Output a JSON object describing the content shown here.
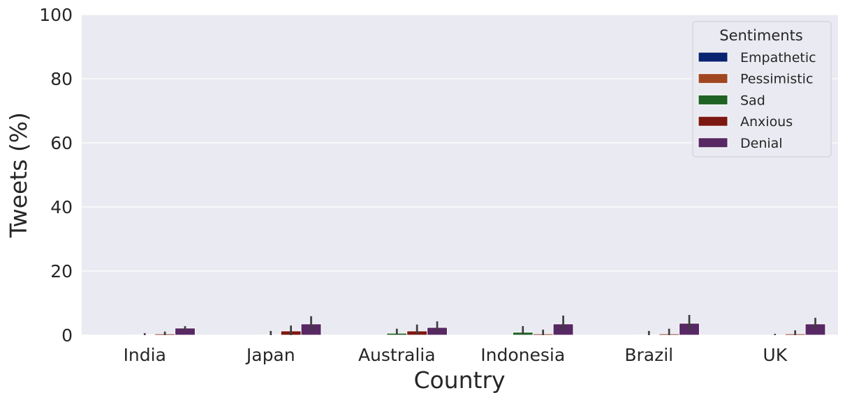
{
  "chart_data": {
    "type": "bar",
    "title": "",
    "xlabel": "Country",
    "ylabel": "Tweets (%)",
    "ylim": [
      0,
      100
    ],
    "yticks": [
      0,
      20,
      40,
      60,
      80,
      100
    ],
    "grid": true,
    "legend": {
      "title": "Sentiments",
      "placement": "top-right"
    },
    "categories": [
      "India",
      "Japan",
      "Australia",
      "Indonesia",
      "Brazil",
      "UK"
    ],
    "series": [
      {
        "name": "Empathetic",
        "color": "#0a2370",
        "values": [
          0,
          0,
          0,
          0,
          0,
          0
        ],
        "error": [
          [
            0,
            0
          ],
          [
            0,
            0
          ],
          [
            0,
            0
          ],
          [
            0,
            0
          ],
          [
            0,
            0
          ],
          [
            0,
            0
          ]
        ]
      },
      {
        "name": "Pessimistic",
        "color": "#a04722",
        "values": [
          0,
          0,
          0,
          0,
          0,
          0
        ],
        "error": [
          [
            0,
            0
          ],
          [
            0,
            0
          ],
          [
            0,
            0
          ],
          [
            0,
            0
          ],
          [
            0,
            0
          ],
          [
            0,
            0
          ]
        ]
      },
      {
        "name": "Sad",
        "color": "#1e6224",
        "values": [
          0.1,
          0.1,
          0.6,
          0.9,
          0.1,
          0
        ],
        "error": [
          [
            0,
            0.6
          ],
          [
            0,
            1.3
          ],
          [
            0.2,
            2.0
          ],
          [
            0.2,
            2.8
          ],
          [
            0,
            1.3
          ],
          [
            0,
            0.4
          ]
        ]
      },
      {
        "name": "Anxious",
        "color": "#7c1812",
        "values": [
          0.4,
          1.3,
          1.3,
          0.4,
          0.4,
          0.4
        ],
        "error": [
          [
            0,
            1.1
          ],
          [
            0,
            3.0
          ],
          [
            0.4,
            3.3
          ],
          [
            0,
            1.7
          ],
          [
            0,
            2.0
          ],
          [
            0,
            1.5
          ]
        ]
      },
      {
        "name": "Denial",
        "color": "#572863",
        "values": [
          2.2,
          3.5,
          2.4,
          3.5,
          3.7,
          3.5
        ],
        "error": [
          [
            1.6,
            2.8
          ],
          [
            1.5,
            5.9
          ],
          [
            1.1,
            4.3
          ],
          [
            1.3,
            6.1
          ],
          [
            1.7,
            6.3
          ],
          [
            2.0,
            5.4
          ]
        ]
      }
    ]
  }
}
